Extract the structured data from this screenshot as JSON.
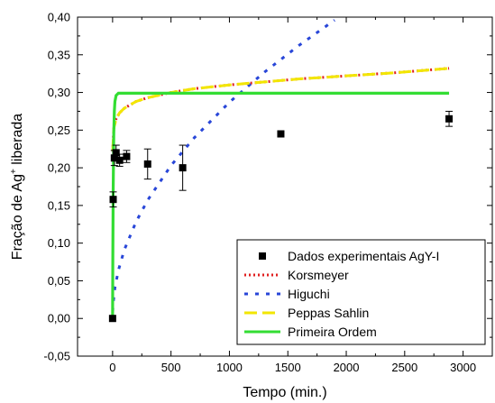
{
  "chart_data": {
    "type": "scatter",
    "xlabel": "Tempo (min.)",
    "ylabel_main": "Fração de Ag",
    "ylabel_sup": "+",
    "ylabel_tail": " liberada",
    "xlim": [
      -300,
      3250
    ],
    "ylim": [
      -0.05,
      0.4
    ],
    "x_ticks": [
      0,
      500,
      1000,
      1500,
      2000,
      2500,
      3000
    ],
    "x_tick_labels": [
      "0",
      "500",
      "1000",
      "1500",
      "2000",
      "2500",
      "3000"
    ],
    "y_ticks": [
      -0.05,
      0.0,
      0.05,
      0.1,
      0.15,
      0.2,
      0.25,
      0.3,
      0.35,
      0.4
    ],
    "y_tick_labels": [
      "-0,05",
      "0,00",
      "0,05",
      "0,10",
      "0,15",
      "0,20",
      "0,25",
      "0,30",
      "0,35",
      "0,40"
    ],
    "legend_position": "bottom-right",
    "series": [
      {
        "name": "Dados experimentais AgY-I",
        "kind": "points",
        "color": "#000000",
        "points": [
          {
            "x": 0,
            "y": 0.0,
            "err": 0
          },
          {
            "x": 5,
            "y": 0.158,
            "err": 0.01
          },
          {
            "x": 15,
            "y": 0.213,
            "err": 0.01
          },
          {
            "x": 30,
            "y": 0.22,
            "err": 0.01
          },
          {
            "x": 60,
            "y": 0.21,
            "err": 0.008
          },
          {
            "x": 120,
            "y": 0.215,
            "err": 0.008
          },
          {
            "x": 300,
            "y": 0.205,
            "err": 0.02
          },
          {
            "x": 600,
            "y": 0.2,
            "err": 0.03
          },
          {
            "x": 1440,
            "y": 0.245,
            "err": 0
          },
          {
            "x": 2880,
            "y": 0.265,
            "err": 0.01
          }
        ]
      },
      {
        "name": "Korsmeyer",
        "kind": "curve",
        "color": "#e02020",
        "dash": "2,3",
        "x": [
          1,
          10,
          30,
          60,
          100,
          200,
          300,
          500,
          700,
          1000,
          1300,
          1600,
          2000,
          2400,
          2880
        ],
        "y": [
          0.222,
          0.252,
          0.265,
          0.273,
          0.279,
          0.288,
          0.293,
          0.3,
          0.305,
          0.31,
          0.314,
          0.318,
          0.322,
          0.326,
          0.332
        ]
      },
      {
        "name": "Higuchi",
        "kind": "curve",
        "color": "#2846d8",
        "dash": "4,8",
        "x": [
          1,
          5,
          20,
          50,
          100,
          200,
          300,
          500,
          700,
          1000,
          1300,
          1600,
          1900
        ],
        "y": [
          0.009,
          0.02,
          0.041,
          0.064,
          0.091,
          0.128,
          0.157,
          0.203,
          0.24,
          0.287,
          0.327,
          0.363,
          0.396
        ]
      },
      {
        "name": "Peppas Sahlin",
        "kind": "curve",
        "color": "#f2e600",
        "dash": "14,6",
        "x": [
          1,
          10,
          30,
          60,
          100,
          200,
          300,
          500,
          700,
          1000,
          1300,
          1600,
          2000,
          2400,
          2880
        ],
        "y": [
          0.222,
          0.252,
          0.265,
          0.273,
          0.279,
          0.288,
          0.293,
          0.3,
          0.305,
          0.31,
          0.314,
          0.318,
          0.322,
          0.326,
          0.332
        ]
      },
      {
        "name": "Primeira Ordem",
        "kind": "curve",
        "color": "#33dd33",
        "dash": "",
        "x": [
          0,
          2,
          5,
          10,
          15,
          20,
          30,
          50,
          2880
        ],
        "y": [
          0.0,
          0.08,
          0.17,
          0.245,
          0.275,
          0.288,
          0.296,
          0.299,
          0.299
        ]
      }
    ]
  }
}
